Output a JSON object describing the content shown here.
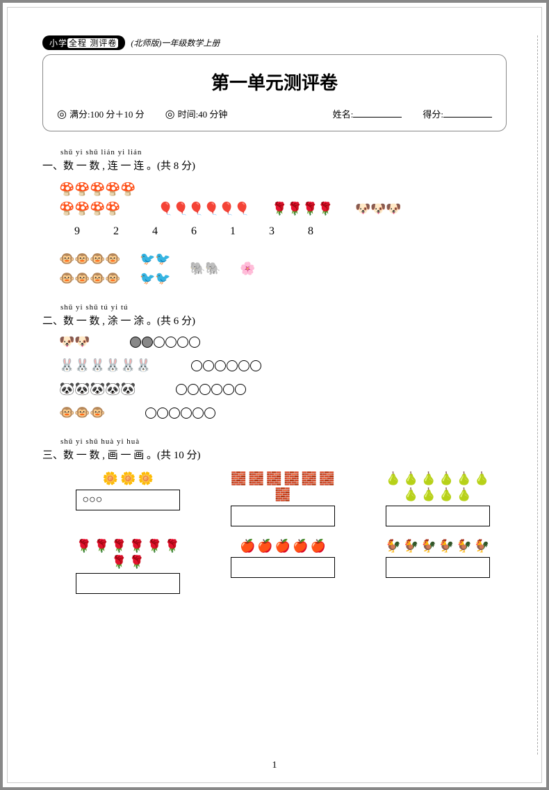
{
  "header": {
    "badge_prefix": "小学",
    "badge_main": "全程 测评卷",
    "sub": "(北师版)一年级数学上册"
  },
  "title": "第一单元测评卷",
  "info": {
    "score_label": "满分:100 分＋10 分",
    "time_label": "时间:40 分钟",
    "name_label": "姓名:",
    "grade_label": "得分:"
  },
  "q1": {
    "pinyin": "shǔ yi shǔ   lián yi lián",
    "title": "一、数 一 数 , 连 一 连 。(共 8 分)",
    "groups": [
      {
        "icon": "🍄",
        "count": 9,
        "cols": 5
      },
      {
        "icon": "🎈",
        "count": 6,
        "cols": 6,
        "balloon": true
      },
      {
        "icon": "🌹",
        "count": 4,
        "cols": 4
      },
      {
        "icon": "🐶",
        "count": 3,
        "cols": 3
      }
    ],
    "numbers": [
      "9",
      "2",
      "4",
      "6",
      "1",
      "3",
      "8"
    ],
    "groups2": [
      {
        "icon": "🐵",
        "count": 8,
        "cols": 4
      },
      {
        "icon": "🐦",
        "count": 4,
        "cols": 2
      },
      {
        "icon": "🐘",
        "count": 2,
        "cols": 2
      },
      {
        "icon": "🌸",
        "count": 1,
        "cols": 1
      }
    ]
  },
  "q2": {
    "pinyin": "shǔ yi shǔ   tú yi tú",
    "title": "二、数 一 数 , 涂 一 涂 。(共 6 分)",
    "rows": [
      {
        "icon": "🐶",
        "count": 2,
        "circles": 6,
        "filled": 2
      },
      {
        "icon": "🐰",
        "count": 6,
        "circles": 6,
        "filled": 0
      },
      {
        "icon": "🐼",
        "count": 5,
        "circles": 6,
        "filled": 0
      },
      {
        "icon": "🐵",
        "count": 3,
        "circles": 6,
        "filled": 0
      }
    ]
  },
  "q3": {
    "pinyin": "shǔ yi shǔ   huà yi huà",
    "title": "三、数 一 数 , 画 一 画 。(共 10 分)",
    "cells": [
      {
        "icon": "🌼",
        "count": 3,
        "answer": "○○○"
      },
      {
        "icon": "🧱",
        "count": 7,
        "answer": ""
      },
      {
        "icon": "🍐",
        "count": 10,
        "answer": ""
      },
      {
        "icon": "🌹",
        "count": 8,
        "answer": ""
      },
      {
        "icon": "🍎",
        "count": 5,
        "answer": ""
      },
      {
        "icon": "🐓",
        "count": 6,
        "answer": ""
      }
    ]
  },
  "page_number": "1"
}
